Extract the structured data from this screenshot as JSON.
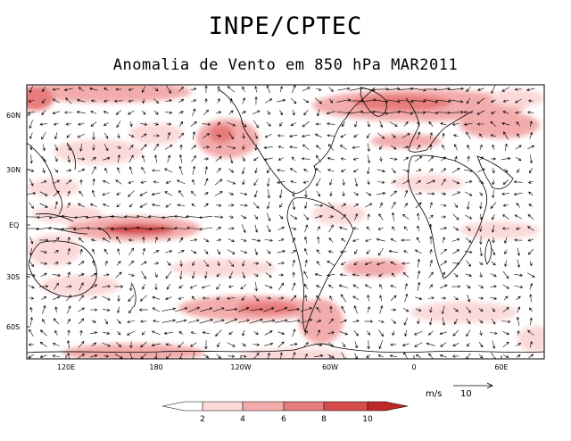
{
  "header": {
    "title": "INPE/CPTEC",
    "subtitle": "Anomalia de Vento em 850 hPa MAR2011"
  },
  "map": {
    "lat_ticks": [
      "60N",
      "30N",
      "EQ",
      "30S",
      "60S"
    ],
    "lon_ticks": [
      "120E",
      "180",
      "120W",
      "60W",
      "0",
      "60E"
    ]
  },
  "legend": {
    "labels": [
      "2",
      "4",
      "6",
      "8",
      "10"
    ],
    "colors": [
      "#ffffff",
      "#fbd9d9",
      "#f3acac",
      "#e77c7c",
      "#d44c4c",
      "#c02828"
    ]
  },
  "scale": {
    "unit": "m/s",
    "value": "10"
  },
  "colors": {
    "coast": "#000000",
    "vector": "#000000"
  }
}
